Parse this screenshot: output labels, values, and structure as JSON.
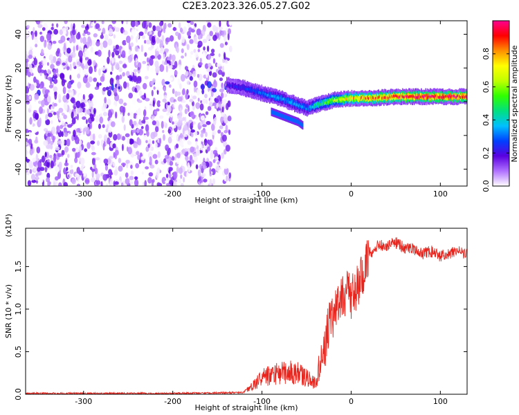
{
  "title": "C2E3.2023.326.05.27.G02",
  "chart_data": [
    {
      "type": "heatmap",
      "xlabel": "Height of straight line (km)",
      "ylabel": "Frequency (Hz)",
      "xlim": [
        -365,
        130
      ],
      "ylim": [
        -50,
        48
      ],
      "xticks": [
        -300,
        -200,
        -100,
        0,
        100
      ],
      "yticks": [
        -40,
        -20,
        0,
        20,
        40
      ],
      "colorbar": {
        "label": "Normalized spectral amplitude",
        "range": [
          0,
          1
        ],
        "ticks": [
          0.0,
          0.2,
          0.4,
          0.6,
          0.8
        ],
        "colors": [
          "#ffffff",
          "#b070ff",
          "#5a00e0",
          "#0040ff",
          "#00c0ff",
          "#00e080",
          "#30ff00",
          "#c0ff00",
          "#ffff00",
          "#ff9000",
          "#ff0000",
          "#ff0090"
        ]
      },
      "ridge": {
        "x": [
          -140,
          -120,
          -100,
          -80,
          -60,
          -50,
          -40,
          -20,
          0,
          20,
          50,
          80,
          100,
          130
        ],
        "y": [
          10,
          8,
          5,
          2,
          -2,
          -4,
          -2,
          1,
          2,
          2,
          3,
          3,
          3,
          3
        ],
        "peak_amplitude": [
          0.2,
          0.25,
          0.3,
          0.35,
          0.35,
          0.3,
          0.45,
          0.6,
          0.75,
          0.8,
          0.9,
          0.95,
          0.95,
          0.9
        ]
      },
      "secondary_ridge": {
        "x": [
          -90,
          -80,
          -70,
          -60,
          -55
        ],
        "y": [
          -6,
          -8,
          -10,
          -12,
          -14
        ]
      },
      "noise_region": {
        "x": [
          -365,
          -135
        ],
        "y": [
          -50,
          48
        ]
      }
    },
    {
      "type": "line",
      "xlabel": "Height of straight line (km)",
      "ylabel": "SNR (10 * v/v)",
      "y_multiplier": "(x10⁴)",
      "xlim": [
        -365,
        130
      ],
      "ylim": [
        0,
        1.95
      ],
      "xticks": [
        -300,
        -200,
        -100,
        0,
        100
      ],
      "yticks": [
        0.0,
        0.5,
        1.0,
        1.5
      ],
      "series": [
        {
          "color": "#e8241c",
          "x": [
            -365,
            -300,
            -200,
            -120,
            -110,
            -100,
            -80,
            -60,
            -50,
            -40,
            -35,
            -30,
            -25,
            -20,
            -15,
            -10,
            -5,
            0,
            5,
            10,
            15,
            20,
            30,
            40,
            50,
            60,
            70,
            80,
            90,
            100,
            110,
            120,
            130
          ],
          "y": [
            0.01,
            0.01,
            0.01,
            0.02,
            0.08,
            0.15,
            0.2,
            0.2,
            0.15,
            0.1,
            0.3,
            0.6,
            0.9,
            1.0,
            1.1,
            1.15,
            1.3,
            1.2,
            1.3,
            1.4,
            1.55,
            1.65,
            1.75,
            1.75,
            1.78,
            1.72,
            1.7,
            1.65,
            1.68,
            1.62,
            1.65,
            1.68,
            1.63
          ]
        }
      ]
    }
  ]
}
